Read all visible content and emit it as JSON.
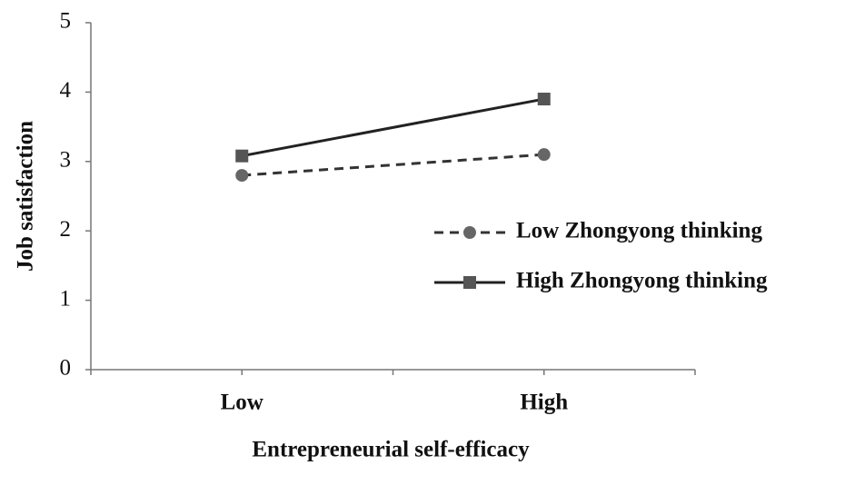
{
  "chart_data": {
    "type": "line",
    "categories": [
      "Low",
      "High"
    ],
    "x_label": "Entrepreneurial self-efficacy",
    "y_label": "Job satisfaction",
    "ylim": [
      0,
      5
    ],
    "yticks": [
      0,
      1,
      2,
      3,
      4,
      5
    ],
    "series": [
      {
        "name": "Low Zhongyong thinking",
        "color": "#333333",
        "marker_color": "#666666",
        "line_style": "dashed",
        "marker": "circle",
        "values": [
          2.8,
          3.1
        ]
      },
      {
        "name": "High Zhongyong thinking",
        "color": "#222222",
        "marker_color": "#555555",
        "line_style": "solid",
        "marker": "square",
        "values": [
          3.08,
          3.9
        ]
      }
    ]
  }
}
